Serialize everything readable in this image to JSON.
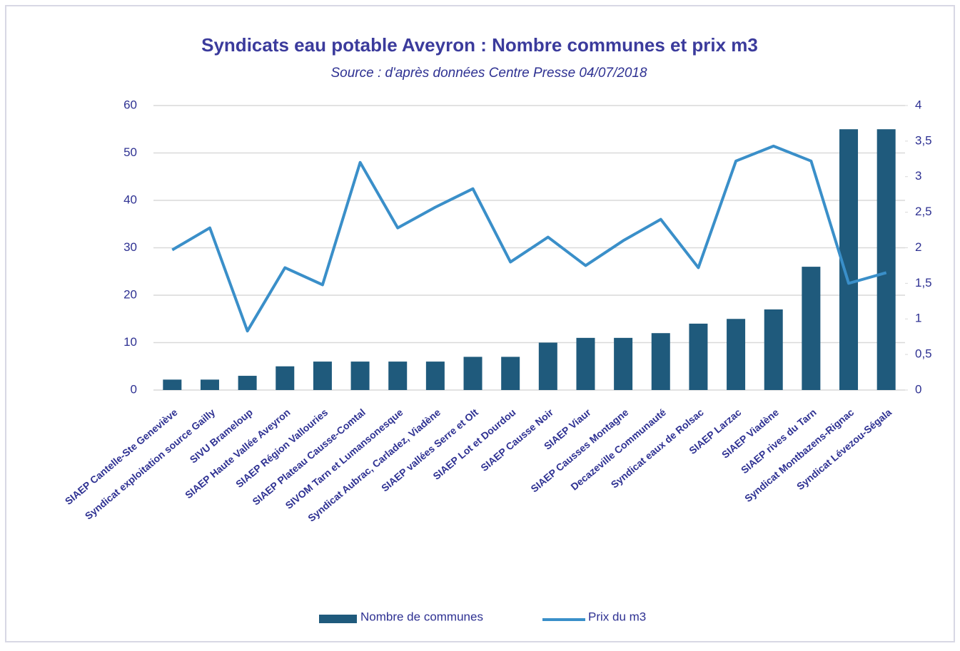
{
  "chart_data": {
    "type": "bar-line",
    "title": "Syndicats eau potable Aveyron : Nombre communes et prix m3",
    "subtitle": "Source : d'après données Centre Presse 04/07/2018",
    "categories": [
      "SIAEP Cantelle-Ste Geneviève",
      "Syndicat exploitation source Gailly",
      "SIVU Brameloup",
      "SIAEP Haute Vallée Aveyron",
      "SIAEP Région Vallouries",
      "SIAEP Plateau Causse-Comtal",
      "SIVOM Tarn et Lumansonesque",
      "Syndicat Aubrac, Carladez, Viadène",
      "SIAEP vallées Serre et Olt",
      "SIAEP Lot et Dourdou",
      "SIAEP Causse Noir",
      "SIAEP Viaur",
      "SIAEP Causses Montagne",
      "Decazeville Communauté",
      "Syndicat eaux de Rolsac",
      "SIAEP Larzac",
      "SIAEP Viadène",
      "SIAEP rives du Tarn",
      "Syndicat Montbazens-Rignac",
      "Syndicat Lévezou-Ségala"
    ],
    "series": [
      {
        "name": "Nombre de communes",
        "color": "#1f5a7c",
        "type": "bar",
        "values": [
          2.2,
          2.2,
          3,
          5,
          6,
          6,
          6,
          6,
          7,
          7,
          10,
          11,
          11,
          12,
          14,
          15,
          17,
          26,
          55,
          55
        ]
      },
      {
        "name": "Prix du m3",
        "color": "#3a8fc9",
        "type": "line",
        "axis": "y2",
        "values": [
          1.97,
          2.28,
          0.83,
          1.72,
          1.48,
          3.2,
          2.28,
          2.57,
          2.83,
          1.8,
          2.15,
          1.75,
          2.1,
          2.4,
          1.72,
          3.22,
          3.43,
          3.22,
          1.5,
          1.65
        ]
      }
    ],
    "ylim": [
      0,
      60
    ],
    "yticks": [
      0,
      10,
      20,
      30,
      40,
      50,
      60
    ],
    "y2lim": [
      0,
      4
    ],
    "y2ticks": [
      0,
      {
        "value": 0.5,
        "label": "0,5"
      },
      1,
      {
        "value": 1.5,
        "label": "1,5"
      },
      2,
      {
        "value": 2.5,
        "label": "2,5"
      },
      3,
      {
        "value": 3.5,
        "label": "3,5"
      },
      4
    ],
    "grid": true,
    "legend": "bottom"
  }
}
